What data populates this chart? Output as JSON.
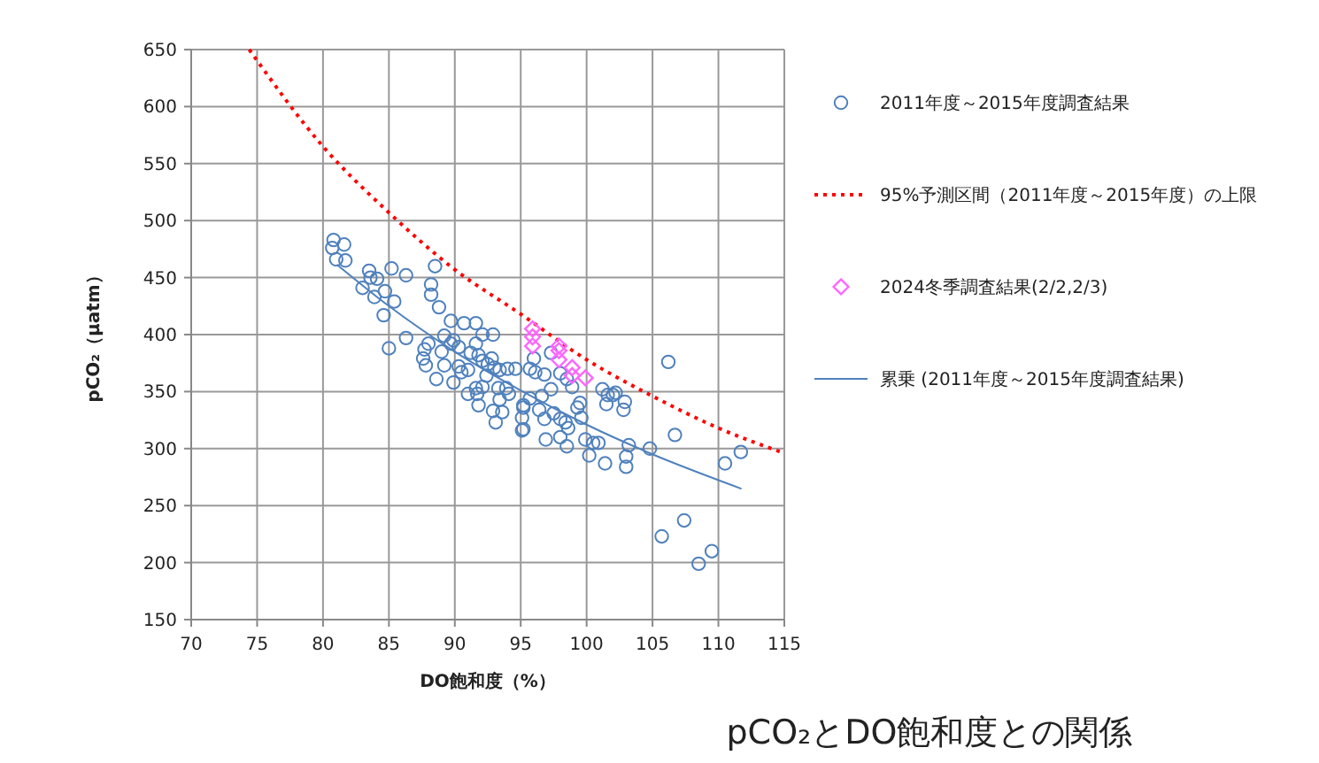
{
  "chart_data": {
    "type": "scatter",
    "title": "pCO₂とDO飽和度との関係",
    "xlabel": "DO飽和度（%）",
    "ylabel": "pCO₂（μatm）",
    "xlim": [
      70,
      115
    ],
    "xticks": [
      70,
      75,
      80,
      85,
      90,
      95,
      100,
      105,
      110,
      115
    ],
    "ylim": [
      150,
      650
    ],
    "yticks": [
      150,
      200,
      250,
      300,
      350,
      400,
      450,
      500,
      550,
      600,
      650
    ],
    "grid": true,
    "legend": "right",
    "series": [
      {
        "name": "2011年度～2015年度調査結果",
        "marker": "circle",
        "color": "#4f81bd",
        "x": [
          80.8,
          81.6,
          80.7,
          81.0,
          81.7,
          83.5,
          83.6,
          84.1,
          83.0,
          83.9,
          84.7,
          85.2,
          86.3,
          85.4,
          84.6,
          86.3,
          85.0,
          88.5,
          88.2,
          88.2,
          88.8,
          89.7,
          89.2,
          88.0,
          87.7,
          87.6,
          87.8,
          89.0,
          89.2,
          88.6,
          89.9,
          89.7,
          90.3,
          90.7,
          91.6,
          91.6,
          92.1,
          92.9,
          91.2,
          91.8,
          92.1,
          90.3,
          90.5,
          91.0,
          89.9,
          91.6,
          92.1,
          91.7,
          91.0,
          91.8,
          92.5,
          93.0,
          92.4,
          92.8,
          93.4,
          94.0,
          93.3,
          93.9,
          94.1,
          93.4,
          92.9,
          93.6,
          93.1,
          94.6,
          95.2,
          95.1,
          95.1,
          106.2,
          96.0,
          97.3,
          95.7,
          96.1,
          96.8,
          98.0,
          98.5,
          98.9,
          97.3,
          96.6,
          95.7,
          95.2,
          96.4,
          96.8,
          97.5,
          98.0,
          98.4,
          98.6,
          98.0,
          98.5,
          96.9,
          95.2,
          99.5,
          99.6,
          99.9,
          100.5,
          100.9,
          100.2,
          101.4,
          101.2,
          101.6,
          101.5,
          102.0,
          102.2,
          102.9,
          102.8,
          103.2,
          103.0,
          103.0,
          104.8,
          106.7,
          110.5,
          111.7,
          105.7,
          107.4,
          109.5,
          108.5,
          99.3
        ],
        "values": [
          483,
          479,
          476,
          466,
          465,
          456,
          450,
          449,
          441,
          433,
          438,
          458,
          452,
          429,
          417,
          397,
          388,
          460,
          444,
          435,
          424,
          412,
          399,
          392,
          387,
          379,
          373,
          385,
          373,
          361,
          395,
          392,
          389,
          410,
          410,
          392,
          400,
          400,
          384,
          382,
          377,
          372,
          367,
          369,
          358,
          353,
          354,
          348,
          348,
          338,
          374,
          371,
          364,
          379,
          369,
          370,
          353,
          353,
          348,
          343,
          333,
          332,
          323,
          370,
          338,
          327,
          316,
          376,
          379,
          384,
          370,
          367,
          365,
          366,
          361,
          354,
          352,
          346,
          344,
          336,
          334,
          326,
          331,
          326,
          323,
          318,
          310,
          302,
          308,
          317,
          340,
          327,
          308,
          305,
          305,
          294,
          287,
          352,
          347,
          339,
          347,
          349,
          341,
          334,
          303,
          293,
          284,
          300,
          312,
          287,
          297,
          223,
          237,
          210,
          199,
          336
        ]
      },
      {
        "name": "95%予測区間（2011年度～2015年度）の上限",
        "type": "line",
        "marker": "none",
        "line_style": "dotted",
        "color": "#ff0000",
        "x": [
          74.4,
          80,
          85,
          90,
          95,
          100,
          105,
          110,
          115
        ],
        "values": [
          650,
          565,
          507,
          457,
          418,
          378,
          346,
          318,
          296
        ]
      },
      {
        "name": "2024冬季調査結果(2/2,2/3)",
        "marker": "diamond",
        "color": "#ff66ff",
        "x": [
          95.9,
          95.9,
          95.9,
          97.9,
          97.9,
          97.9,
          98.9,
          98.9,
          99.9
        ],
        "values": [
          405,
          398,
          390,
          390,
          386,
          378,
          371,
          364,
          362
        ]
      },
      {
        "name": "累乗 (2011年度～2015年度調査結果)",
        "type": "line",
        "marker": "none",
        "line_style": "solid",
        "color": "#4f81bd",
        "x": [
          81.1,
          85,
          90,
          95,
          100,
          105,
          111.7
        ],
        "values": [
          461,
          425,
          385,
          351,
          321,
          295,
          265
        ]
      }
    ]
  }
}
